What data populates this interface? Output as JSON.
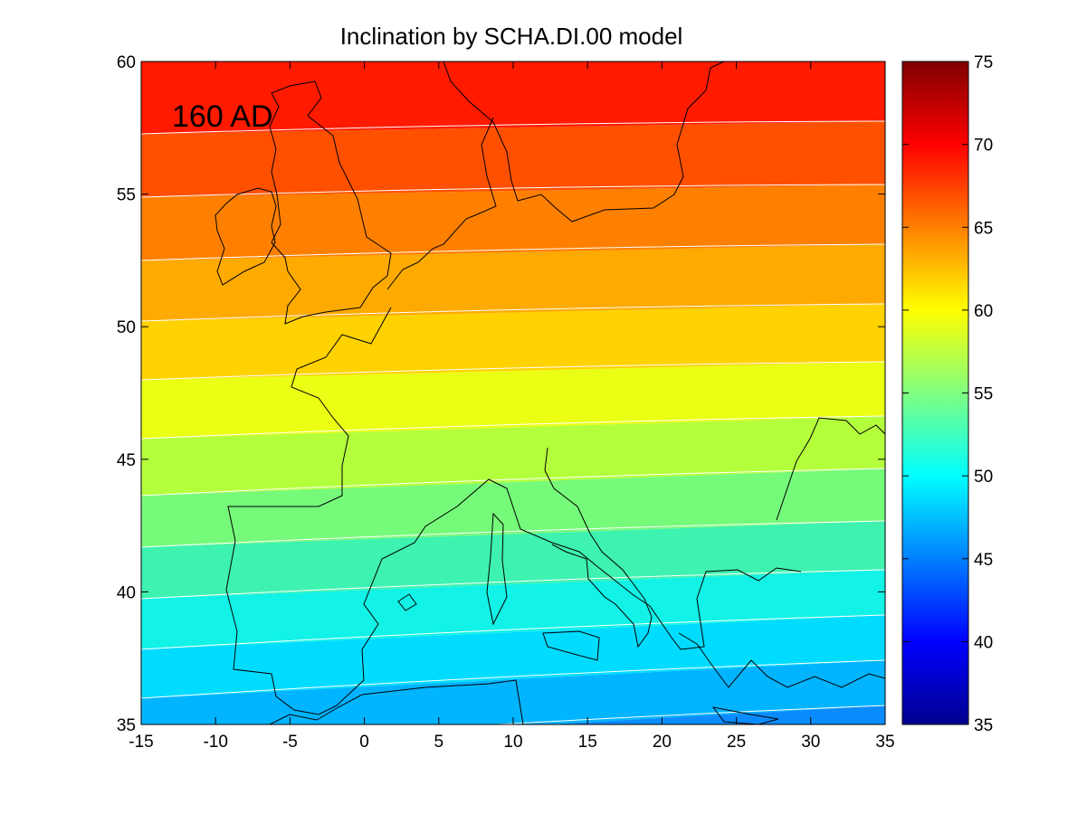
{
  "title": "Inclination by SCHA.DI.00 model",
  "annotation": "160 AD",
  "map": {
    "x_ticks": [
      "-15",
      "-10",
      "-5",
      "0",
      "5",
      "10",
      "15",
      "20",
      "25",
      "30",
      "35"
    ],
    "y_ticks": [
      "35",
      "40",
      "45",
      "50",
      "55",
      "60"
    ],
    "xlim": [
      -15,
      35
    ],
    "ylim": [
      35,
      60
    ],
    "contour_band_colors": [
      "#0a8cff",
      "#00b4ff",
      "#00dcff",
      "#12f2e6",
      "#3ef2b0",
      "#76fa7a",
      "#b4ff3c",
      "#eaff14",
      "#ffd200",
      "#ffaa00",
      "#ff8000",
      "#ff5000",
      "#ff1a00"
    ],
    "contour_line_color": "#ffffff",
    "coastline_color": "#000000"
  },
  "colorbar": {
    "tick_labels": [
      "35",
      "40",
      "45",
      "50",
      "55",
      "60",
      "65",
      "70",
      "75"
    ],
    "range": [
      35,
      75
    ]
  },
  "chart_data": {
    "type": "heatmap",
    "title": "Inclination by SCHA.DI.00 model",
    "xlabel": "",
    "ylabel": "",
    "xlim": [
      -15,
      35
    ],
    "ylim": [
      35,
      60
    ],
    "colorbar_range": [
      35,
      75
    ],
    "annotation": "160 AD",
    "contour_levels": [
      47.5,
      50,
      52.5,
      55,
      57.5,
      60,
      62.5,
      65,
      67.5,
      70,
      72.5
    ],
    "description_of_field": [
      {
        "lon": -15,
        "lat": 60,
        "value": 72
      },
      {
        "lon": -15,
        "lat": 35,
        "value": 49
      },
      {
        "lon": 35,
        "lat": 60,
        "value": 72
      },
      {
        "lon": 35,
        "lat": 35,
        "value": 47
      }
    ]
  }
}
